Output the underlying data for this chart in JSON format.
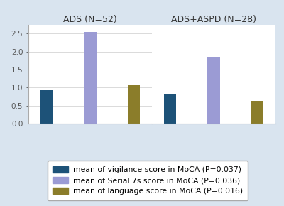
{
  "groups": [
    "ADS (⁠​N=52)",
    "ADS+ASPD (⁠​N=28)"
  ],
  "group_titles": [
    "ADS (N=52)",
    "ADS+ASPD (N=28)"
  ],
  "series": [
    {
      "label": "mean of vigilance score in MoCA (P=0.037)",
      "color": "#1d5278",
      "values": [
        0.93,
        0.83
      ]
    },
    {
      "label": "mean of Serial 7s score in MoCA (P=0.036)",
      "color": "#9b9bd4",
      "values": [
        2.55,
        1.85
      ]
    },
    {
      "label": "mean of language score in MoCA (P=0.016)",
      "color": "#8b7d2a",
      "values": [
        1.09,
        0.63
      ]
    }
  ],
  "ylim": [
    0,
    2.75
  ],
  "yticks": [
    0,
    0.5,
    1.0,
    1.5,
    2.0,
    2.5
  ],
  "figure_bg_color": "#d9e4ef",
  "plot_bg_color": "#ffffff",
  "bar_width": 0.28,
  "title_fontsize": 9,
  "legend_fontsize": 7.8,
  "tick_fontsize": 7.5
}
